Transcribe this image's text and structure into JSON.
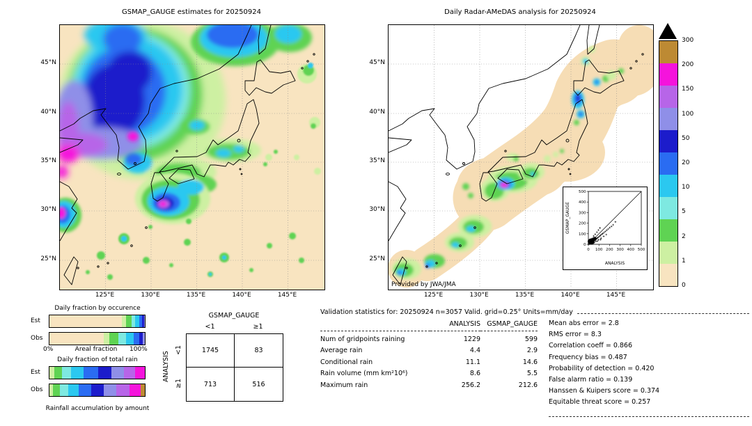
{
  "colors": {
    "cream": "#f8e4c0",
    "tan": "#f6ddb5",
    "lightgreen": "#cdf0a2",
    "green": "#5fd353",
    "lightcyan": "#7ee9e1",
    "cyan": "#2bc8f0",
    "blue": "#2a6cf2",
    "darkblue": "#1c1ccb",
    "periwinkle": "#8f8fe8",
    "violet": "#b765e8",
    "magenta": "#f513dc",
    "ochre": "#bd8a33"
  },
  "left_map": {
    "title": "GSMAP_GAUGE estimates for 20250924",
    "lat_ticks": [
      "45°N",
      "40°N",
      "35°N",
      "30°N",
      "25°N"
    ],
    "lon_ticks": [
      "125°E",
      "130°E",
      "135°E",
      "140°E",
      "145°E"
    ]
  },
  "right_map": {
    "title": "Daily Radar-AMeDAS analysis for 20250924",
    "credit": "Provided by JWA/JMA",
    "lat_ticks": [
      "45°N",
      "40°N",
      "35°N",
      "30°N",
      "25°N"
    ],
    "lon_ticks": [
      "125°E",
      "130°E",
      "135°E",
      "140°E",
      "145°E"
    ]
  },
  "colorbar": {
    "labels": [
      "300",
      "200",
      "150",
      "100",
      "50",
      "20",
      "10",
      "5",
      "2",
      "1",
      "0"
    ],
    "segment_colors": [
      "ochre",
      "magenta",
      "violet",
      "periwinkle",
      "darkblue",
      "blue",
      "cyan",
      "lightcyan",
      "green",
      "lightgreen",
      "cream"
    ]
  },
  "inset": {
    "xlabel": "ANALYSIS",
    "ylabel": "GSMAP_GAUGE",
    "ticks": [
      "0",
      "100",
      "200",
      "300",
      "400",
      "500"
    ],
    "points": [
      [
        3,
        2
      ],
      [
        6,
        3
      ],
      [
        9,
        5
      ],
      [
        12,
        7
      ],
      [
        15,
        9
      ],
      [
        18,
        12
      ],
      [
        22,
        13
      ],
      [
        26,
        16
      ],
      [
        30,
        19
      ],
      [
        35,
        22
      ],
      [
        40,
        26
      ],
      [
        45,
        30
      ],
      [
        50,
        33
      ],
      [
        56,
        38
      ],
      [
        62,
        42
      ],
      [
        68,
        47
      ],
      [
        75,
        52
      ],
      [
        82,
        58
      ],
      [
        90,
        64
      ],
      [
        98,
        71
      ],
      [
        107,
        78
      ],
      [
        116,
        86
      ],
      [
        126,
        94
      ],
      [
        137,
        103
      ],
      [
        148,
        112
      ],
      [
        160,
        122
      ],
      [
        173,
        133
      ],
      [
        187,
        145
      ],
      [
        202,
        157
      ],
      [
        218,
        170
      ],
      [
        235,
        184
      ],
      [
        256,
        212
      ],
      [
        20,
        35
      ],
      [
        35,
        55
      ],
      [
        50,
        78
      ],
      [
        65,
        95
      ],
      [
        80,
        115
      ],
      [
        95,
        135
      ],
      [
        110,
        155
      ],
      [
        45,
        15
      ],
      [
        70,
        28
      ],
      [
        95,
        42
      ],
      [
        120,
        58
      ],
      [
        145,
        75
      ],
      [
        170,
        92
      ],
      [
        30,
        8
      ],
      [
        55,
        18
      ],
      [
        85,
        30
      ],
      [
        115,
        45
      ],
      [
        10,
        22
      ],
      [
        15,
        30
      ],
      [
        25,
        45
      ]
    ]
  },
  "occurrence": {
    "title": "Daily fraction by occurence",
    "axis": {
      "left": "0%",
      "center": "Areal fraction",
      "right": "100%"
    },
    "rows": [
      {
        "label": "Est",
        "segments": [
          {
            "color": "cream",
            "pct": 76
          },
          {
            "color": "lightgreen",
            "pct": 4
          },
          {
            "color": "green",
            "pct": 6
          },
          {
            "color": "lightcyan",
            "pct": 4
          },
          {
            "color": "cyan",
            "pct": 4
          },
          {
            "color": "blue",
            "pct": 3
          },
          {
            "color": "darkblue",
            "pct": 2
          },
          {
            "color": "periwinkle",
            "pct": 1
          }
        ]
      },
      {
        "label": "Obs",
        "segments": [
          {
            "color": "cream",
            "pct": 57
          },
          {
            "color": "lightgreen",
            "pct": 6
          },
          {
            "color": "green",
            "pct": 9
          },
          {
            "color": "lightcyan",
            "pct": 8
          },
          {
            "color": "cyan",
            "pct": 8
          },
          {
            "color": "blue",
            "pct": 6
          },
          {
            "color": "darkblue",
            "pct": 4
          },
          {
            "color": "periwinkle",
            "pct": 2
          }
        ]
      }
    ]
  },
  "total_rain": {
    "title": "Daily fraction of total rain",
    "caption": "Rainfall accumulation by amount",
    "rows": [
      {
        "label": "Est",
        "segments": [
          {
            "color": "lightgreen",
            "pct": 5
          },
          {
            "color": "green",
            "pct": 8
          },
          {
            "color": "lightcyan",
            "pct": 10
          },
          {
            "color": "cyan",
            "pct": 13
          },
          {
            "color": "blue",
            "pct": 15
          },
          {
            "color": "darkblue",
            "pct": 14
          },
          {
            "color": "periwinkle",
            "pct": 13
          },
          {
            "color": "violet",
            "pct": 12
          },
          {
            "color": "magenta",
            "pct": 10
          }
        ]
      },
      {
        "label": "Obs",
        "segments": [
          {
            "color": "lightgreen",
            "pct": 4
          },
          {
            "color": "green",
            "pct": 7
          },
          {
            "color": "lightcyan",
            "pct": 9
          },
          {
            "color": "cyan",
            "pct": 11
          },
          {
            "color": "blue",
            "pct": 13
          },
          {
            "color": "darkblue",
            "pct": 13
          },
          {
            "color": "periwinkle",
            "pct": 13
          },
          {
            "color": "violet",
            "pct": 14
          },
          {
            "color": "magenta",
            "pct": 12
          },
          {
            "color": "ochre",
            "pct": 4
          }
        ]
      }
    ]
  },
  "contingency": {
    "header": "GSMAP_GAUGE",
    "cols": [
      "<1",
      "≥1"
    ],
    "row_axis": "ANALYSIS",
    "rows": [
      "<1",
      "≥1"
    ],
    "values": [
      [
        "1745",
        "83"
      ],
      [
        "713",
        "516"
      ]
    ]
  },
  "validation": {
    "title": "Validation statistics for: 20250924  n=3057 Valid. grid=0.25° Units=mm/day",
    "columns": [
      "ANALYSIS",
      "GSMAP_GAUGE"
    ],
    "rows": [
      {
        "label": "Num of gridpoints raining",
        "analysis": "1229",
        "gsmap": "599"
      },
      {
        "label": "Average rain",
        "analysis": "4.4",
        "gsmap": "2.9"
      },
      {
        "label": "Conditional rain",
        "analysis": "11.1",
        "gsmap": "14.6"
      },
      {
        "label": "Rain volume (mm km²10⁶)",
        "analysis": "8.6",
        "gsmap": "5.5"
      },
      {
        "label": "Maximum rain",
        "analysis": "256.2",
        "gsmap": "212.6"
      }
    ]
  },
  "metrics": [
    {
      "label": "Mean abs error",
      "value": "2.8"
    },
    {
      "label": "RMS error",
      "value": "8.3"
    },
    {
      "label": "Correlation coeff",
      "value": "0.866"
    },
    {
      "label": "Frequency bias",
      "value": "0.487"
    },
    {
      "label": "Probability of detection",
      "value": "0.420"
    },
    {
      "label": "False alarm ratio",
      "value": "0.139"
    },
    {
      "label": "Hanssen & Kuipers score",
      "value": "0.374"
    },
    {
      "label": "Equitable threat score",
      "value": "0.257"
    }
  ],
  "chart_data": [
    {
      "type": "heatmap",
      "id": "gsmap-map",
      "title": "GSMAP_GAUGE estimates for 20250924",
      "units": "mm/day",
      "lon_range": [
        120,
        149
      ],
      "lat_range": [
        22,
        49
      ],
      "lon_ticks": [
        125,
        130,
        135,
        140,
        145
      ],
      "lat_ticks": [
        25,
        30,
        35,
        40,
        45
      ],
      "color_levels": [
        0,
        1,
        2,
        5,
        10,
        20,
        50,
        100,
        150,
        200,
        300
      ],
      "features": [
        "heavy rain band over Sea of Japan and Korea, cores 100-300 mm near 121-128E 34-44N",
        "intense cell 200-300 mm south of Shikoku near 131.5E 30.7N",
        "scattered 1-20 mm rain over central Honshu and subtropical ocean"
      ]
    },
    {
      "type": "heatmap",
      "id": "radar-map",
      "title": "Daily Radar-AMeDAS analysis for 20250924",
      "units": "mm/day",
      "credit": "Provided by JWA/JMA",
      "lon_range": [
        120,
        149
      ],
      "lat_range": [
        22,
        49
      ],
      "lon_ticks": [
        125,
        130,
        135,
        140,
        145
      ],
      "lat_ticks": [
        25,
        30,
        35,
        40,
        45
      ],
      "color_levels": [
        0,
        1,
        2,
        5,
        10,
        20,
        50,
        100,
        150,
        200,
        300
      ],
      "features": [
        "radar coverage band (0 mm base) along Japanese archipelago",
        "intense cell ~150-300 mm near 132.7E 32.6N off Shikoku",
        "2-10 mm rain along Pacific coast, SW island chain and NE Honshu spots"
      ]
    },
    {
      "type": "scatter",
      "id": "inset-scatter",
      "xlabel": "ANALYSIS",
      "ylabel": "GSMAP_GAUGE",
      "xlim": [
        0,
        500
      ],
      "ylim": [
        0,
        500
      ],
      "x_ticks": [
        0,
        100,
        200,
        300,
        400,
        500
      ],
      "y_ticks": [
        0,
        100,
        200,
        300,
        400,
        500
      ],
      "diagonal_line": true,
      "note": "dense cluster near origin, max point about (256,212)",
      "points": [
        [
          3,
          2
        ],
        [
          6,
          3
        ],
        [
          9,
          5
        ],
        [
          12,
          7
        ],
        [
          15,
          9
        ],
        [
          18,
          12
        ],
        [
          22,
          13
        ],
        [
          26,
          16
        ],
        [
          30,
          19
        ],
        [
          35,
          22
        ],
        [
          40,
          26
        ],
        [
          45,
          30
        ],
        [
          50,
          33
        ],
        [
          56,
          38
        ],
        [
          62,
          42
        ],
        [
          68,
          47
        ],
        [
          75,
          52
        ],
        [
          82,
          58
        ],
        [
          90,
          64
        ],
        [
          98,
          71
        ],
        [
          107,
          78
        ],
        [
          116,
          86
        ],
        [
          126,
          94
        ],
        [
          137,
          103
        ],
        [
          148,
          112
        ],
        [
          160,
          122
        ],
        [
          173,
          133
        ],
        [
          187,
          145
        ],
        [
          202,
          157
        ],
        [
          218,
          170
        ],
        [
          235,
          184
        ],
        [
          256,
          212
        ],
        [
          20,
          35
        ],
        [
          35,
          55
        ],
        [
          50,
          78
        ],
        [
          65,
          95
        ],
        [
          80,
          115
        ],
        [
          95,
          135
        ],
        [
          110,
          155
        ],
        [
          45,
          15
        ],
        [
          70,
          28
        ],
        [
          95,
          42
        ],
        [
          120,
          58
        ],
        [
          145,
          75
        ],
        [
          170,
          92
        ],
        [
          30,
          8
        ],
        [
          55,
          18
        ],
        [
          85,
          30
        ],
        [
          115,
          45
        ],
        [
          10,
          22
        ],
        [
          15,
          30
        ],
        [
          25,
          45
        ]
      ]
    },
    {
      "type": "bar",
      "subtype": "stacked-horizontal",
      "id": "occurrence",
      "title": "Daily fraction by occurence",
      "xlabel": "Areal fraction",
      "xlim_pct": [
        0,
        100
      ],
      "categories": [
        "Est",
        "Obs"
      ],
      "series_pct": {
        "Est": {
          "0-1": 76,
          "1-2": 4,
          "2-5": 6,
          "5-10": 4,
          "10-20": 4,
          "20-50": 3,
          "50-100": 2,
          "100-150": 1
        },
        "Obs": {
          "0-1": 57,
          "1-2": 6,
          "2-5": 9,
          "5-10": 8,
          "10-20": 8,
          "20-50": 6,
          "50-100": 4,
          "100-150": 2
        }
      }
    },
    {
      "type": "bar",
      "subtype": "stacked-horizontal",
      "id": "total-rain",
      "title": "Daily fraction of total rain",
      "xlabel": "Rainfall accumulation by amount",
      "xlim_pct": [
        0,
        100
      ],
      "categories": [
        "Est",
        "Obs"
      ],
      "series_pct": {
        "Est": {
          "1-2": 5,
          "2-5": 8,
          "5-10": 10,
          "10-20": 13,
          "20-50": 15,
          "50-100": 14,
          "100-150": 13,
          "150-200": 12,
          "200-300": 10
        },
        "Obs": {
          "1-2": 4,
          "2-5": 7,
          "5-10": 9,
          "10-20": 11,
          "20-50": 13,
          "50-100": 13,
          "100-150": 13,
          "150-200": 14,
          "200-300": 12,
          ">300": 4
        }
      }
    },
    {
      "type": "table",
      "id": "contingency",
      "title": "ANALYSIS vs GSMAP_GAUGE contingency counts",
      "col_headers": [
        "<1",
        "≥1"
      ],
      "row_headers": [
        "<1",
        "≥1"
      ],
      "values": [
        [
          1745,
          83
        ],
        [
          713,
          516
        ]
      ]
    },
    {
      "type": "table",
      "id": "validation-stats",
      "title": "Validation statistics for: 20250924  n=3057 Valid. grid=0.25° Units=mm/day",
      "columns": [
        "ANALYSIS",
        "GSMAP_GAUGE"
      ],
      "rows": [
        [
          "Num of gridpoints raining",
          1229,
          599
        ],
        [
          "Average rain",
          4.4,
          2.9
        ],
        [
          "Conditional rain",
          11.1,
          14.6
        ],
        [
          "Rain volume (mm km²10⁶)",
          8.6,
          5.5
        ],
        [
          "Maximum rain",
          256.2,
          212.6
        ]
      ],
      "scores": {
        "Mean abs error": 2.8,
        "RMS error": 8.3,
        "Correlation coeff": 0.866,
        "Frequency bias": 0.487,
        "Probability of detection": 0.42,
        "False alarm ratio": 0.139,
        "Hanssen & Kuipers score": 0.374,
        "Equitable threat score": 0.257
      }
    }
  ]
}
